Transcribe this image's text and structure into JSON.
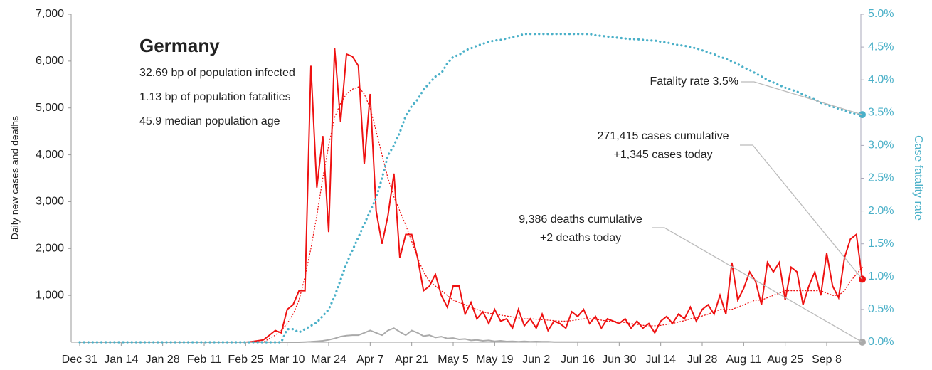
{
  "chart_data": {
    "type": "line",
    "annotations": {
      "country": "Germany",
      "lines": [
        "32.69 bp of population infected",
        "1.13 bp of population fatalities",
        "45.9 median population age"
      ],
      "fatality_callout": [
        "Fatality rate 3.5%"
      ],
      "cases_callout": [
        "271,415 cases cumulative",
        "+1,345 cases today"
      ],
      "deaths_callout": [
        "9,386 deaths cumulative",
        "+2 deaths today"
      ]
    },
    "ylabel": "Daily new cases and deaths",
    "y2label": "Case fatality rate",
    "ylim": [
      0,
      7000
    ],
    "yticks": [
      {
        "value": 1000,
        "label": "1,000"
      },
      {
        "value": 2000,
        "label": "2,000"
      },
      {
        "value": 3000,
        "label": "3,000"
      },
      {
        "value": 4000,
        "label": "4,000"
      },
      {
        "value": 5000,
        "label": "5,000"
      },
      {
        "value": 6000,
        "label": "6,000"
      },
      {
        "value": 7000,
        "label": "7,000"
      }
    ],
    "y2lim": [
      0,
      5
    ],
    "y2ticks": [
      {
        "value": 0,
        "label": "0.0%"
      },
      {
        "value": 0.5,
        "label": "0.5%"
      },
      {
        "value": 1,
        "label": "1.0%"
      },
      {
        "value": 1.5,
        "label": "1.5%"
      },
      {
        "value": 2,
        "label": "2.0%"
      },
      {
        "value": 2.5,
        "label": "2.5%"
      },
      {
        "value": 3,
        "label": "3.0%"
      },
      {
        "value": 3.5,
        "label": "3.5%"
      },
      {
        "value": 4,
        "label": "4.0%"
      },
      {
        "value": 4.5,
        "label": "4.5%"
      },
      {
        "value": 5,
        "label": "5.0%"
      }
    ],
    "categories": [
      "Dec 31",
      null,
      null,
      null,
      null,
      null,
      null,
      "Jan 14",
      null,
      null,
      null,
      null,
      null,
      null,
      "Jan 28",
      null,
      null,
      null,
      null,
      null,
      null,
      "Feb 11",
      null,
      null,
      null,
      null,
      null,
      null,
      "Feb 25",
      null,
      null,
      null,
      null,
      null,
      null,
      "Mar 10",
      null,
      null,
      null,
      null,
      null,
      null,
      "Mar 24",
      null,
      null,
      null,
      null,
      null,
      null,
      "Apr 7",
      null,
      null,
      null,
      null,
      null,
      null,
      "Apr 21",
      null,
      null,
      null,
      null,
      null,
      null,
      "May 5",
      null,
      null,
      null,
      null,
      null,
      null,
      "May 19",
      null,
      null,
      null,
      null,
      null,
      null,
      "Jun 2",
      null,
      null,
      null,
      null,
      null,
      null,
      "Jun 16",
      null,
      null,
      null,
      null,
      null,
      null,
      "Jun 30",
      null,
      null,
      null,
      null,
      null,
      null,
      "Jul 14",
      null,
      null,
      null,
      null,
      null,
      null,
      "Jul 28",
      null,
      null,
      null,
      null,
      null,
      null,
      "Aug 11",
      null,
      null,
      null,
      null,
      null,
      null,
      "Aug 25",
      null,
      null,
      null,
      null,
      null,
      null,
      "Sep 8",
      null,
      null,
      null,
      null,
      null,
      null
    ],
    "series": [
      {
        "color": "#ee1111",
        "style": "solid",
        "values": [
          0,
          0,
          0,
          0,
          0,
          0,
          0,
          0,
          0,
          0,
          0,
          0,
          0,
          0,
          0,
          0,
          0,
          0,
          0,
          0,
          0,
          0,
          0,
          0,
          0,
          0,
          0,
          0,
          0,
          10,
          30,
          50,
          150,
          250,
          200,
          700,
          800,
          1100,
          1100,
          5900,
          3300,
          4400,
          2350,
          6280,
          4700,
          6150,
          6100,
          5900,
          3800,
          5300,
          2800,
          2100,
          2700,
          3600,
          1800,
          2300,
          2300,
          1800,
          1100,
          1200,
          1450,
          1000,
          750,
          1200,
          1200,
          600,
          850,
          500,
          650,
          400,
          700,
          450,
          500,
          300,
          700,
          350,
          500,
          300,
          600,
          250,
          450,
          400,
          300,
          650,
          550,
          700,
          400,
          550,
          300,
          500,
          450,
          400,
          500,
          300,
          450,
          300,
          400,
          200,
          450,
          550,
          400,
          600,
          500,
          750,
          450,
          700,
          800,
          600,
          1000,
          600,
          1700,
          900,
          1150,
          1500,
          1300,
          800,
          1700,
          1500,
          1700,
          900,
          1600,
          1500,
          800,
          1200,
          1500,
          1000,
          1900,
          1200,
          950,
          1800,
          2200,
          2300,
          1345
        ]
      },
      {
        "color": "#ee1111",
        "style": "dotted",
        "values": [
          0,
          0,
          0,
          0,
          0,
          0,
          0,
          0,
          0,
          0,
          0,
          0,
          0,
          0,
          0,
          0,
          0,
          0,
          0,
          0,
          0,
          0,
          0,
          0,
          0,
          0,
          0,
          0,
          0,
          0,
          0,
          0,
          80,
          150,
          250,
          400,
          600,
          900,
          1400,
          2000,
          2700,
          3500,
          4200,
          4800,
          5100,
          5300,
          5400,
          5450,
          5300,
          5000,
          4500,
          4000,
          3500,
          3100,
          2800,
          2500,
          2150,
          1800,
          1500,
          1300,
          1200,
          1100,
          1000,
          900,
          850,
          800,
          750,
          700,
          650,
          620,
          600,
          580,
          560,
          540,
          520,
          500,
          500,
          490,
          480,
          470,
          460,
          450,
          450,
          460,
          480,
          500,
          500,
          490,
          470,
          450,
          450,
          430,
          420,
          400,
          380,
          360,
          350,
          350,
          360,
          380,
          400,
          430,
          460,
          500,
          530,
          560,
          600,
          650,
          700,
          700,
          700,
          750,
          800,
          850,
          900,
          900,
          950,
          1000,
          1050,
          1100,
          1100,
          1100,
          1100,
          1100,
          1100,
          1100,
          1050,
          1000,
          1000,
          1100,
          1300,
          1450,
          1600
        ]
      },
      {
        "color": "#aaaaaa",
        "style": "solid",
        "values": [
          0,
          0,
          0,
          0,
          0,
          0,
          0,
          0,
          0,
          0,
          0,
          0,
          0,
          0,
          0,
          0,
          0,
          0,
          0,
          0,
          0,
          0,
          0,
          0,
          0,
          0,
          0,
          0,
          0,
          0,
          0,
          0,
          0,
          0,
          0,
          0,
          0,
          0,
          5,
          10,
          20,
          30,
          50,
          80,
          120,
          140,
          150,
          150,
          200,
          250,
          200,
          150,
          250,
          300,
          220,
          150,
          250,
          200,
          130,
          150,
          100,
          120,
          80,
          90,
          60,
          70,
          40,
          50,
          30,
          40,
          20,
          30,
          15,
          20,
          10,
          20,
          10,
          15,
          10,
          10,
          5,
          5,
          3,
          5,
          3,
          5,
          3,
          5,
          3,
          5,
          3,
          5,
          3,
          5,
          3,
          5,
          3,
          5,
          3,
          5,
          3,
          5,
          3,
          5,
          3,
          5,
          3,
          5,
          3,
          5,
          3,
          5,
          3,
          5,
          3,
          5,
          3,
          5,
          3,
          5,
          3,
          5,
          3,
          5,
          3,
          5,
          3,
          5,
          3,
          5,
          3,
          5,
          2
        ]
      },
      {
        "color": "#4ab0c8",
        "style": "dotted",
        "axis": "y2",
        "values": [
          0,
          0,
          0,
          0,
          0,
          0,
          0,
          0,
          0,
          0,
          0,
          0,
          0,
          0,
          0,
          0,
          0,
          0,
          0,
          0,
          0,
          0,
          0,
          0,
          0,
          0,
          0,
          0,
          0,
          0,
          0,
          0,
          0,
          0,
          0,
          0.2,
          0.2,
          0.15,
          0.2,
          0.25,
          0.3,
          0.4,
          0.5,
          0.7,
          0.95,
          1.2,
          1.4,
          1.6,
          1.8,
          2.0,
          2.2,
          2.5,
          2.85,
          3.0,
          3.2,
          3.45,
          3.6,
          3.7,
          3.85,
          3.95,
          4.05,
          4.1,
          4.25,
          4.35,
          4.38,
          4.45,
          4.48,
          4.52,
          4.55,
          4.58,
          4.6,
          4.61,
          4.63,
          4.65,
          4.67,
          4.7,
          4.7,
          4.7,
          4.7,
          4.7,
          4.7,
          4.7,
          4.7,
          4.7,
          4.7,
          4.7,
          4.7,
          4.68,
          4.67,
          4.66,
          4.65,
          4.64,
          4.63,
          4.62,
          4.62,
          4.61,
          4.6,
          4.6,
          4.58,
          4.57,
          4.55,
          4.53,
          4.52,
          4.5,
          4.48,
          4.45,
          4.42,
          4.39,
          4.35,
          4.32,
          4.28,
          4.24,
          4.19,
          4.15,
          4.1,
          4.05,
          4.0,
          3.96,
          3.92,
          3.88,
          3.85,
          3.82,
          3.78,
          3.74,
          3.7,
          3.65,
          3.62,
          3.59,
          3.56,
          3.53,
          3.5,
          3.48,
          3.47
        ]
      }
    ]
  }
}
